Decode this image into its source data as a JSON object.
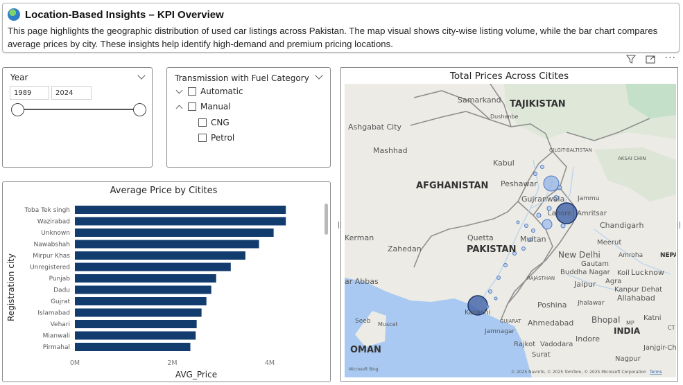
{
  "header": {
    "title": "Location-Based Insights – KPI Overview",
    "description": "This page highlights the geographic distribution of used car listings across Pakistan. The map visual shows city-wise listing volume, while the bar chart compares average prices by city. These insights help identify high-demand and premium pricing locations."
  },
  "toolbar": {
    "filter_icon": "filter-icon",
    "focus_icon": "focus-mode-icon",
    "more_label": "···"
  },
  "year_slicer": {
    "title": "Year",
    "start": "1989",
    "end": "2024"
  },
  "transmission_slicer": {
    "title": "Transmission with Fuel Category",
    "items": [
      {
        "label": "Automatic"
      },
      {
        "label": "Manual"
      },
      {
        "label": "CNG"
      },
      {
        "label": "Petrol"
      }
    ]
  },
  "map": {
    "title": "Total Prices Across Citites",
    "labels": {
      "tajikistan": "TAJIKISTAN",
      "samarkand": "Samarkand",
      "dushanbe": "Dushanbe",
      "ashgabat": "Ashgabat City",
      "mashhad": "Mashhad",
      "afghanistan": "AFGHANISTAN",
      "kabul": "Kabul",
      "peshawar": "Peshawar",
      "gilgit": "GILGIT-BALTISTAN",
      "aksai": "AKSAI CHIN",
      "jammu": "Jammu",
      "gujranwala": "Gujranwala",
      "lahore": "Lahore",
      "amritsar": "Amritsar",
      "chandigarh": "Chandigarh",
      "kerman": "Kerman",
      "quetta": "Quetta",
      "zahedan": "Zahedan",
      "pakistan": "PAKISTAN",
      "multan": "Multan",
      "meerut": "Meerut",
      "newdelhi": "New Delhi",
      "nepal": "NEPA",
      "gautam": "Gautam",
      "buddha": "Buddha Nagar",
      "koil": "Koil",
      "lucknow": "Lucknow",
      "agra": "Agra",
      "jaipur": "Jaipur",
      "rajasthan": "RAJASTHAN",
      "kanpur": "Kanpur Dehat",
      "bandar": "ar Abbas",
      "allahabad": "Allahabad",
      "karachi": "Karachi",
      "poshina": "Poshina",
      "jhalawar": "Jhalawar",
      "seeb": "Seeb",
      "muscat": "Muscat",
      "gujarat": "GUJARAT",
      "ahmedabad": "Ahmedabad",
      "bhopal": "Bhopal",
      "katni": "Katni",
      "jamnagar": "Jamnagar",
      "rajkot": "Rajkot",
      "vadodara": "Vadodara",
      "surat": "Surat",
      "indore": "Indore",
      "india": "INDIA",
      "oman": "OMAN",
      "nagpur": "Nagpur",
      "janjgir": "Janjgir-Cha",
      "ct": "CT",
      "mp": "MP",
      "amroha": "Amroha"
    },
    "copyright": "© 2025 NavInfo, © 2025 TomTom, © 2025 Microsoft Corporation",
    "terms": "Terms",
    "bing": "Microsoft Bing"
  },
  "chart_data": {
    "type": "bar",
    "orientation": "horizontal",
    "title": "Average Price by Citites",
    "xlabel": "AVG_Price",
    "ylabel": "Registration city",
    "categories": [
      "Toba Tek singh",
      "Wazirabad",
      "Unknown",
      "Nawabshah",
      "Mirpur Khas",
      "Unregistered",
      "Punjab",
      "Dadu",
      "Gujrat",
      "Islamabad",
      "Vehari",
      "Mianwali",
      "Pirmahal"
    ],
    "values": [
      4330000,
      4330000,
      4080000,
      3780000,
      3500000,
      3200000,
      2900000,
      2800000,
      2700000,
      2600000,
      2500000,
      2480000,
      2370000
    ],
    "xlim": [
      0,
      5000000
    ],
    "xticks": [
      0,
      2000000,
      4000000
    ],
    "xtick_labels": [
      "0M",
      "2M",
      "4M"
    ],
    "color": "#123B6E",
    "grid": false
  }
}
